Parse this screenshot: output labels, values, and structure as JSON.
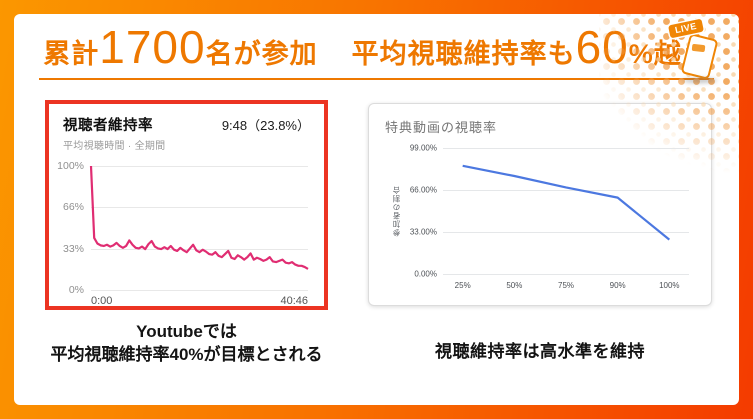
{
  "header": {
    "title_seg1": "累計",
    "title_num1": "1700",
    "title_seg2": "名が参加",
    "title_seg3": "平均視聴維持率も",
    "title_num2": "60",
    "title_seg4": "%越え",
    "accent_color": "#ee7800",
    "live_badge": "LIVE"
  },
  "chart_data": [
    {
      "type": "line",
      "title": "視聴者維持率",
      "header_value": "9:48（23.8%）",
      "subtitle": "平均視聴時間 · 全期間",
      "yticks": [
        "100%",
        "66%",
        "33%",
        "0%"
      ],
      "xticks": [
        "0:00",
        "40:46"
      ],
      "ylim": [
        0,
        100
      ],
      "x_pad": 0,
      "axis_line": false,
      "color": "#e02d72",
      "stroke_width": 2.2,
      "values": [
        100,
        42,
        37.5,
        36,
        35.5,
        36.5,
        35,
        36,
        38,
        35.5,
        34,
        35.5,
        40,
        36.5,
        34,
        33.5,
        35,
        33,
        37,
        39.5,
        35,
        33.5,
        33,
        34.5,
        33,
        35.5,
        32.5,
        31.5,
        34,
        32,
        30.5,
        33.5,
        36.5,
        32,
        30.5,
        32.5,
        31,
        29,
        28.5,
        30.5,
        27.5,
        26.5,
        29,
        31.5,
        26,
        25,
        28,
        26.5,
        24.5,
        26.5,
        29.5,
        24.5,
        26,
        25,
        23.5,
        24.5,
        26.5,
        23,
        22.5,
        23.5,
        24.5,
        22,
        21.5,
        22.5,
        20.5,
        19.5,
        19.5,
        18.5,
        17
      ]
    },
    {
      "type": "line",
      "title": "特典動画の視聴率",
      "ylabel": "参加者の割合",
      "yticks": [
        "99.00%",
        "66.00%",
        "33.00%",
        "0.00%"
      ],
      "xticks": [
        "25%",
        "50%",
        "75%",
        "90%",
        "100%"
      ],
      "x": [
        25,
        50,
        75,
        90,
        100
      ],
      "ylim": [
        0,
        99
      ],
      "x_pad": 8,
      "axis_line": true,
      "color": "#4c78e0",
      "stroke_width": 2.2,
      "values": [
        85,
        77,
        68,
        60,
        27
      ]
    }
  ],
  "captions": {
    "left_line1": "Youtubeでは",
    "left_line2": "平均視聴維持率40%が目標とされる",
    "right": "視聴維持率は高水準を維持"
  }
}
